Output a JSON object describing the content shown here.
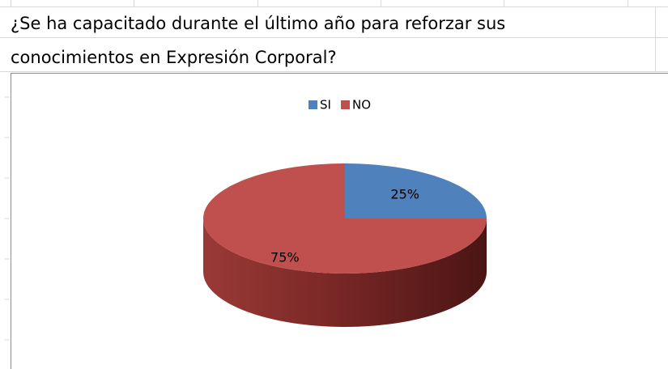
{
  "chart_data": {
    "type": "pie",
    "title_lines": [
      "¿Se ha capacitado durante el último año  para reforzar sus",
      "conocimientos en Expresión Corporal?"
    ],
    "categories": [
      "SI",
      "NO"
    ],
    "values": [
      25,
      75
    ],
    "value_labels": [
      "25%",
      "75%"
    ],
    "colors": [
      "#4f81bd",
      "#c0504d"
    ],
    "legend": "top"
  }
}
